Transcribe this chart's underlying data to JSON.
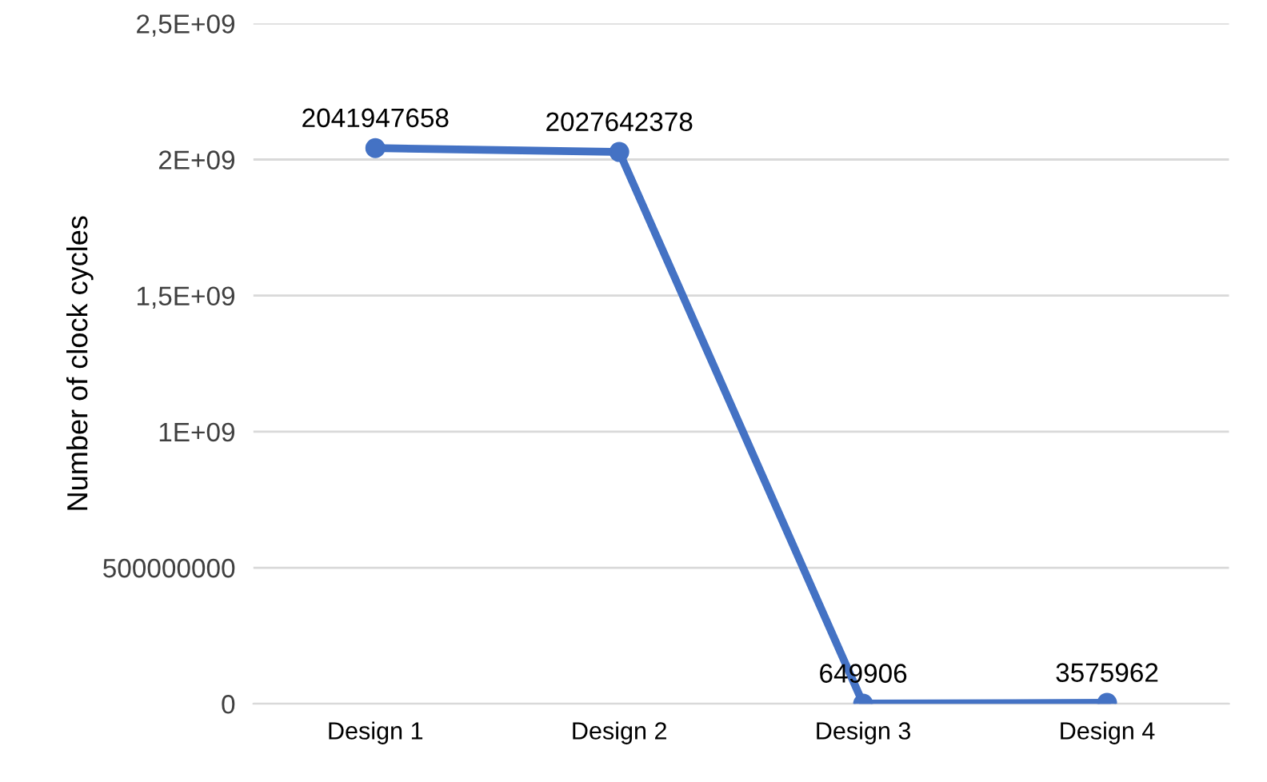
{
  "chart_data": {
    "type": "line",
    "ylabel": "Number of clock cycles",
    "categories": [
      "Design 1",
      "Design 2",
      "Design 3",
      "Design 4"
    ],
    "series": [
      {
        "color": "#4472c4",
        "values": [
          2041947658,
          2027642378,
          649906,
          3575962
        ]
      }
    ],
    "ylim": [
      0,
      2500000000
    ],
    "yticks": [
      0,
      500000000,
      {
        "value": 1000000000,
        "label": "1E+09"
      },
      {
        "value": 1500000000,
        "label": "1,5E+09"
      },
      {
        "value": 2000000000,
        "label": "2E+09"
      },
      {
        "value": 2500000000,
        "label": "2,5E+09"
      }
    ],
    "grid": "y",
    "marker": "circle",
    "line_style": "solid",
    "data_labels": true
  }
}
